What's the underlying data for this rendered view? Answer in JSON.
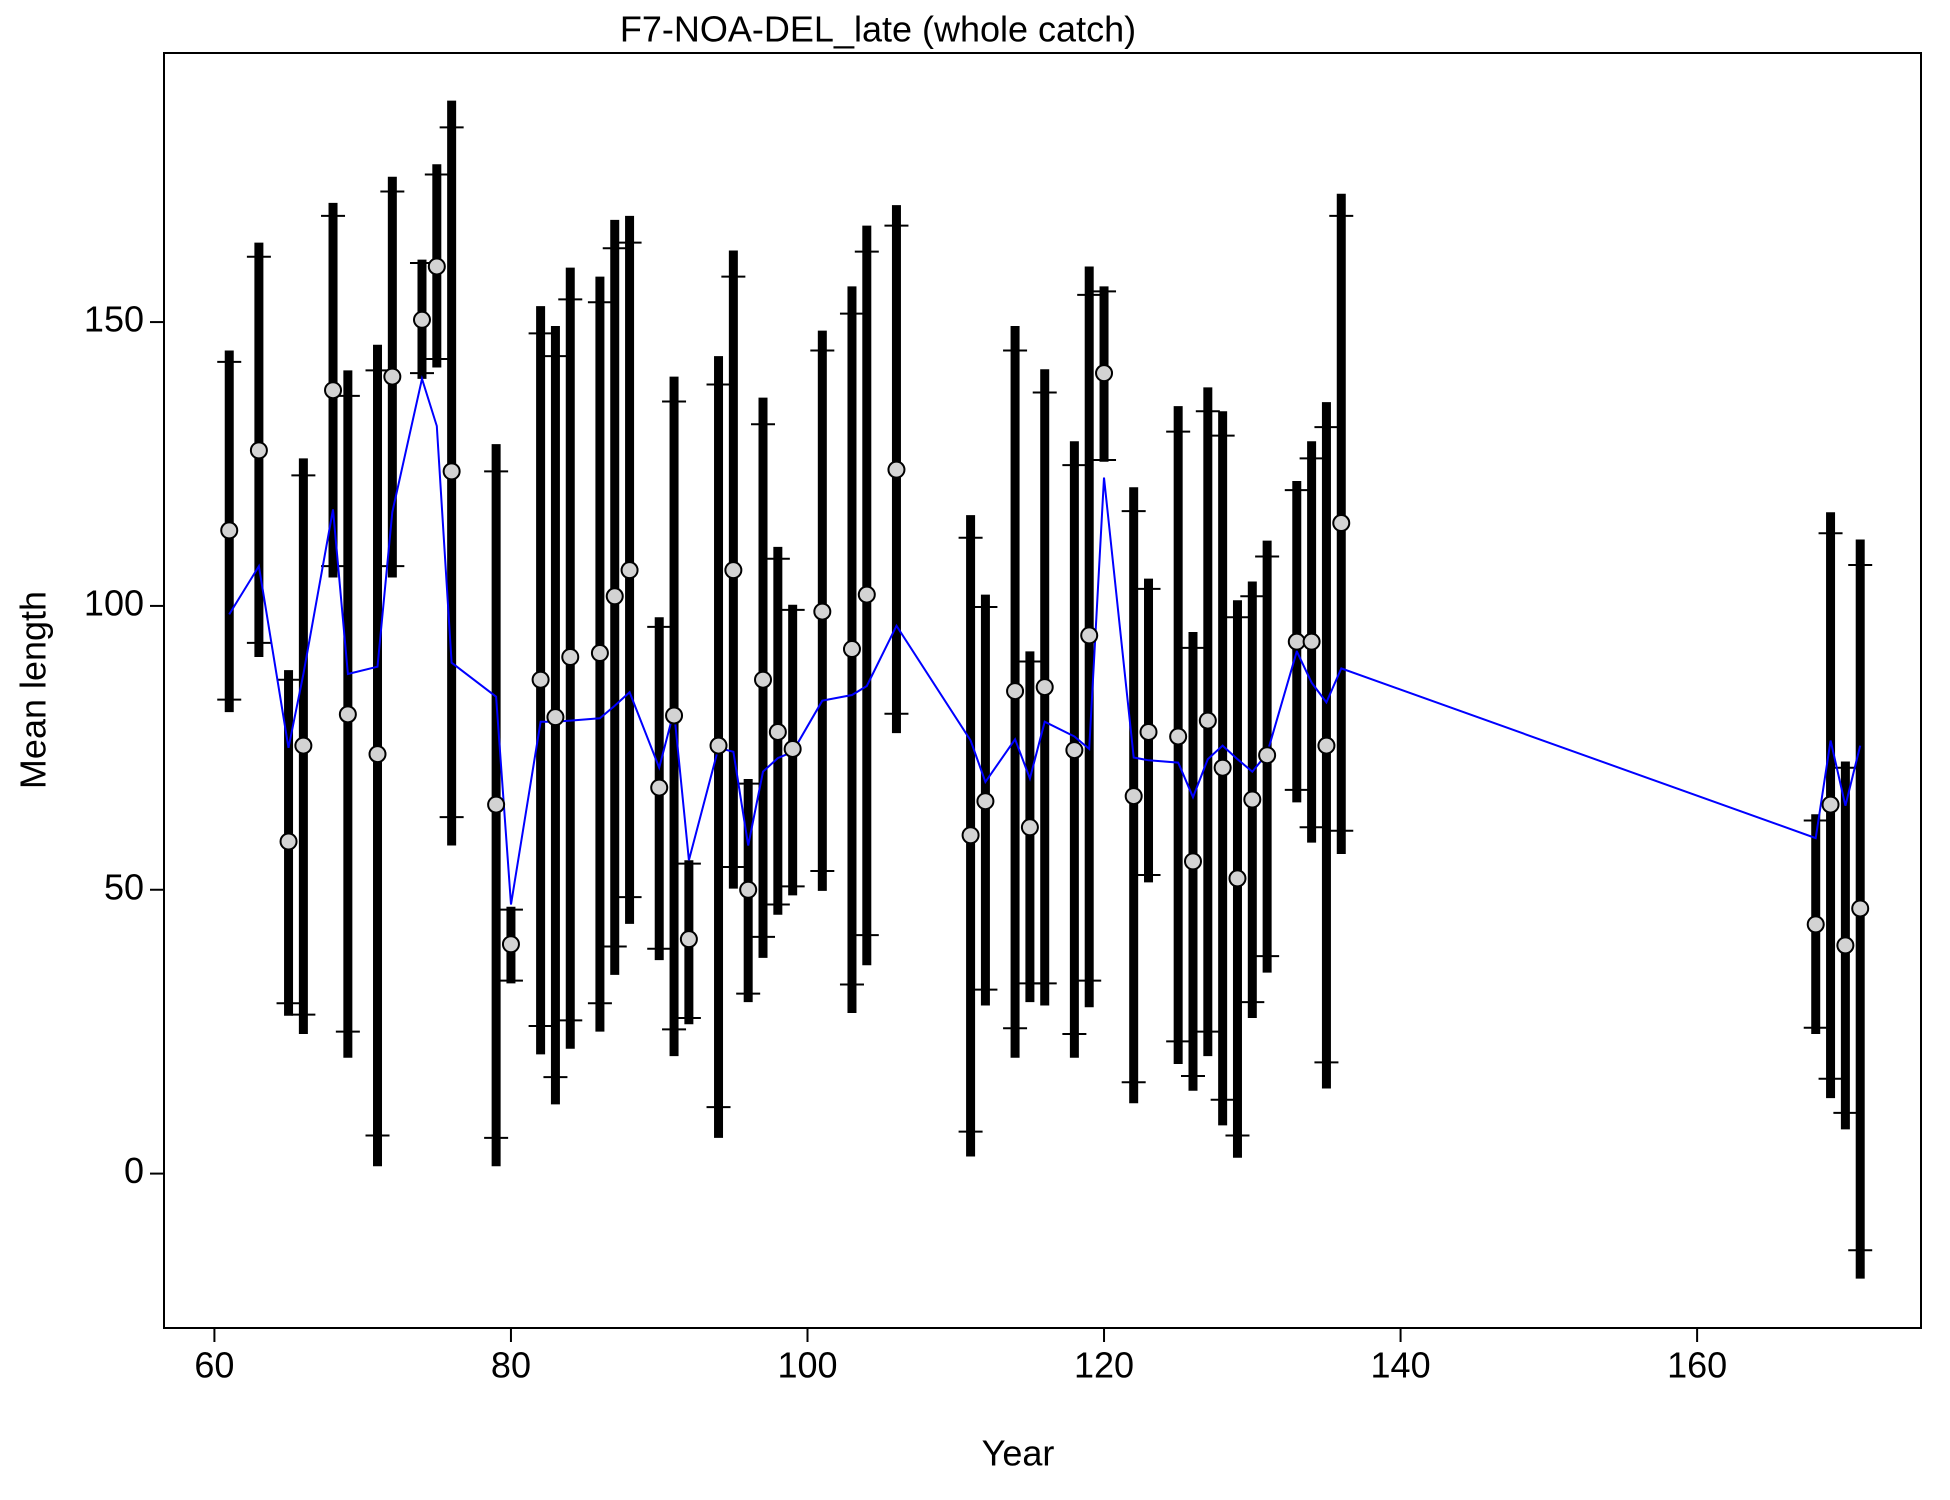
{
  "chart_data": {
    "type": "errorbar",
    "title": "F7-NOA-DEL_late (whole catch)",
    "xlabel": "Year",
    "ylabel": "Mean length",
    "xlim": [
      56.6,
      175.1
    ],
    "ylim": [
      -27.2,
      197.4
    ],
    "xticks": [
      60,
      80,
      100,
      120,
      140,
      160
    ],
    "yticks": [
      0,
      50,
      100,
      150
    ],
    "bar_color": "#000000",
    "point_color": "#d3d3d3",
    "line_color": "#0000ff",
    "x": [
      61,
      63,
      65,
      66,
      68,
      69,
      71,
      72,
      74,
      75,
      76,
      79,
      80,
      82,
      83,
      84,
      86,
      87,
      88,
      90,
      91,
      92,
      94,
      95,
      96,
      97,
      98,
      99,
      101,
      103,
      104,
      106,
      111,
      112,
      114,
      115,
      116,
      118,
      119,
      120,
      122,
      123,
      125,
      126,
      127,
      128,
      129,
      130,
      131,
      133,
      134,
      135,
      136,
      168,
      169,
      170,
      171
    ],
    "observed": [
      113.3,
      127.4,
      58.5,
      75.4,
      138,
      80.9,
      73.9,
      140.4,
      150.4,
      159.8,
      123.7,
      65,
      40.4,
      87,
      80.4,
      91,
      91.7,
      101.7,
      106.3,
      68,
      80.7,
      41.3,
      75.4,
      106.3,
      50,
      87,
      77.8,
      74.8,
      99,
      92.4,
      102,
      124,
      59.6,
      65.6,
      85,
      61,
      85.7,
      74.6,
      94.8,
      141,
      66.5,
      77.8,
      77,
      55,
      79.8,
      71.5,
      52,
      65.9,
      73.7,
      93.7,
      93.7,
      75.4,
      114.6,
      43.9,
      65,
      40.2,
      46.7
    ],
    "expected": [
      98.5,
      107,
      75,
      88,
      117,
      88,
      89.3,
      116.5,
      140,
      131.7,
      90,
      84,
      47.4,
      79.6,
      79.6,
      79.8,
      80.2,
      82.4,
      84.8,
      71.5,
      81.5,
      55.2,
      75,
      74.3,
      57.8,
      70.8,
      73.2,
      74.3,
      83.3,
      84.3,
      85.9,
      96.5,
      76.3,
      69,
      76.5,
      69.6,
      79.6,
      77,
      74.8,
      122.6,
      73.3,
      72.8,
      72.4,
      66.3,
      73,
      75.4,
      73,
      70.8,
      74,
      92,
      86.5,
      83,
      89,
      59.1,
      76.3,
      64.8,
      75.4
    ],
    "upper_outer": [
      145,
      164,
      88.7,
      126,
      171,
      141.5,
      146,
      175.6,
      161,
      177.8,
      189,
      128.5,
      47,
      152.8,
      149.3,
      159.6,
      158,
      168,
      168.7,
      98,
      140.4,
      55.2,
      144,
      162.6,
      69.5,
      136.7,
      110.4,
      100.2,
      148.5,
      156.3,
      167,
      170.6,
      116,
      102,
      149.3,
      92,
      141.7,
      129,
      159.8,
      156.3,
      120.9,
      104.8,
      135.2,
      95.4,
      138.5,
      134.3,
      101,
      104.3,
      111.5,
      122,
      129,
      135.9,
      172.6,
      63.3,
      116.5,
      72.6,
      111.7
    ],
    "lower_outer": [
      81.3,
      91,
      27.8,
      24.6,
      105,
      20.4,
      1.3,
      105,
      140,
      142,
      57.8,
      1.3,
      33.5,
      21,
      12.2,
      22,
      25,
      35,
      44,
      37.6,
      20.7,
      26.3,
      6.3,
      50.2,
      30.2,
      38,
      45.6,
      49,
      49.8,
      28.3,
      36.7,
      77.6,
      3,
      29.6,
      20.4,
      30.2,
      29.6,
      20.4,
      29.3,
      125.4,
      12.4,
      51.3,
      19.3,
      14.6,
      20.7,
      8.5,
      2.8,
      27.4,
      35.4,
      65.4,
      58.3,
      15,
      56.3,
      24.6,
      13.3,
      7.8,
      -18.5
    ],
    "upper_inner": [
      143,
      161.5,
      87,
      123,
      168.7,
      137,
      141.5,
      173,
      160.4,
      176,
      184.3,
      123.7,
      46.5,
      148,
      144,
      154,
      153.5,
      163,
      164,
      96.3,
      136,
      54.6,
      139,
      158,
      68.7,
      132,
      108.3,
      99.3,
      145,
      151.5,
      162.4,
      167,
      112,
      99.8,
      145,
      90.2,
      137.6,
      124.8,
      154.8,
      155.4,
      116.7,
      103,
      130.7,
      92.6,
      134.3,
      130,
      98,
      101.7,
      108.7,
      120.4,
      126,
      131.5,
      168.7,
      62.2,
      112.8,
      71.5,
      107.2
    ],
    "lower_inner": [
      83.5,
      93.5,
      30,
      28,
      107,
      25,
      6.7,
      107,
      141,
      143.5,
      62.8,
      6.3,
      34,
      26,
      17,
      27,
      30,
      40,
      48.7,
      39.6,
      25.4,
      27.4,
      11.7,
      54,
      31.7,
      41.7,
      47.4,
      50.6,
      53.3,
      33.3,
      42,
      81,
      7.4,
      32.4,
      25.6,
      33.5,
      33.5,
      24.6,
      34,
      125.7,
      16.1,
      52.6,
      23.3,
      17.2,
      25,
      13,
      6.7,
      30.2,
      38.3,
      67.6,
      61,
      19.6,
      60.4,
      25.7,
      16.7,
      10.7,
      -13.5
    ]
  }
}
